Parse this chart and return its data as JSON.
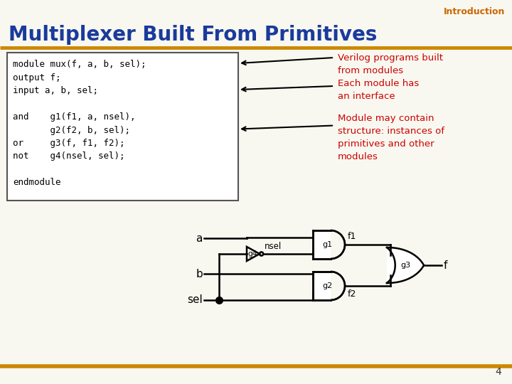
{
  "bg_color": "#f8f8f0",
  "title": "Multiplexer Built From Primitives",
  "title_color": "#1a3a9c",
  "title_fontsize": 20,
  "intro_text": "Introduction",
  "intro_color": "#cc6600",
  "intro_fontsize": 9,
  "code_lines": [
    "module mux(f, a, b, sel);",
    "output f;",
    "input a, b, sel;",
    "",
    "and    g1(f1, a, nsel),",
    "       g2(f2, b, sel);",
    "or     g3(f, f1, f2);",
    "not    g4(nsel, sel);",
    "",
    "endmodule"
  ],
  "code_fontsize": 9,
  "code_box_color": "#ffffff",
  "code_box_edge": "#555555",
  "ann1_text": "Verilog programs built\nfrom modules\nEach module has\nan interface",
  "ann1_color": "#cc0000",
  "ann1_fontsize": 9.5,
  "ann2_text": "Module may contain\nstructure: instances of\nprimitives and other\nmodules",
  "ann2_color": "#cc0000",
  "ann2_fontsize": 9.5,
  "orange_line_color": "#cc8800",
  "page_num": "4",
  "circuit_lw": 1.8
}
